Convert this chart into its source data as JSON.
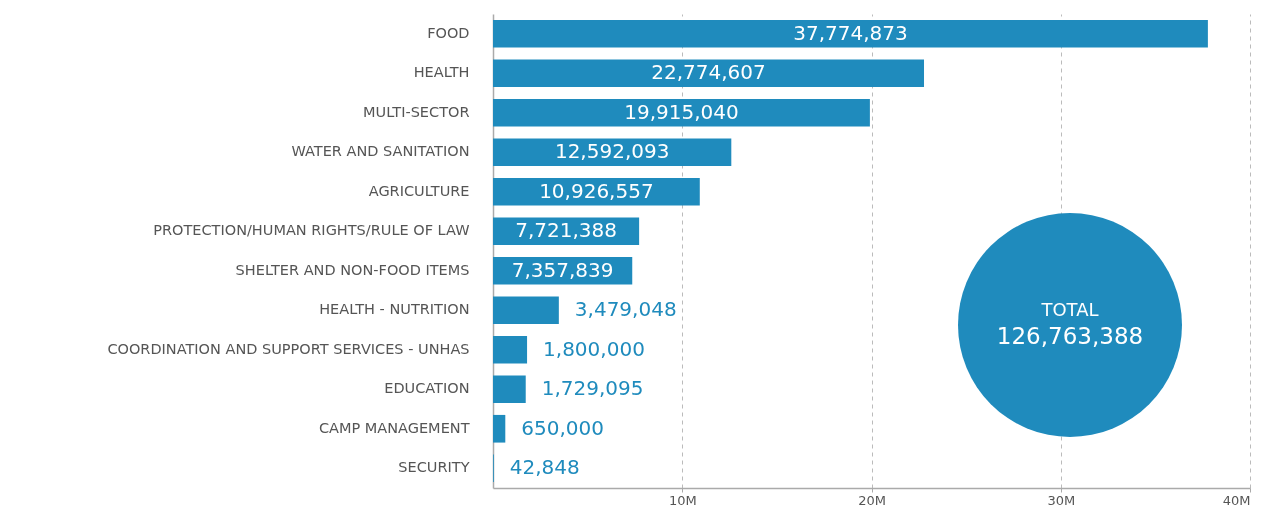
{
  "chart_data": {
    "type": "bar",
    "orientation": "horizontal",
    "categories": [
      "FOOD",
      "HEALTH",
      "MULTI-SECTOR",
      "WATER AND SANITATION",
      "AGRICULTURE",
      "PROTECTION/HUMAN RIGHTS/RULE OF LAW",
      "SHELTER AND NON-FOOD ITEMS",
      "HEALTH - NUTRITION",
      "COORDINATION AND SUPPORT SERVICES - UNHAS",
      "EDUCATION",
      "CAMP MANAGEMENT",
      "SECURITY"
    ],
    "values": [
      37774873,
      22774607,
      19915040,
      12592093,
      10926557,
      7721388,
      7357839,
      3479048,
      1800000,
      1729095,
      650000,
      42848
    ],
    "value_labels": [
      "37,774,873",
      "22,774,607",
      "19,915,040",
      "12,592,093",
      "10,926,557",
      "7,721,388",
      "7,357,839",
      "3,479,048",
      "1,800,000",
      "1,729,095",
      "650,000",
      "42,848"
    ],
    "color": "#1f8bbd",
    "xlim": [
      0,
      40000000
    ],
    "xticks": [
      {
        "value": 10000000,
        "label": "10M"
      },
      {
        "value": 20000000,
        "label": "20M"
      },
      {
        "value": 30000000,
        "label": "30M"
      },
      {
        "value": 40000000,
        "label": "40M"
      }
    ],
    "grid": "x",
    "annotations": [
      "TOTAL",
      "126,763,388"
    ]
  }
}
